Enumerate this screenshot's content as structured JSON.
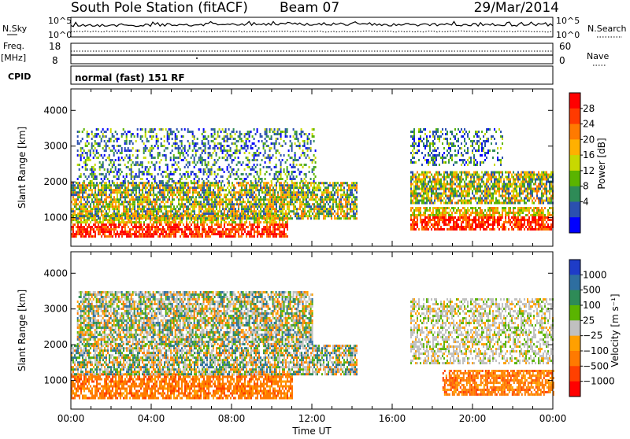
{
  "header": {
    "station": "South Pole Station (fitACF)",
    "beam": "Beam 07",
    "date": "29/Mar/2014"
  },
  "top_panels": {
    "nsky_label": "N.Sky",
    "nsearch_label": "N.Search",
    "nsky_ticks": [
      "10^5",
      "10^0"
    ],
    "freq_label_line1": "Freq.",
    "freq_label_line2": "[MHz]",
    "freq_ticks": [
      "18",
      "8"
    ],
    "nave_label": "Nave",
    "nave_ticks": [
      "60",
      "0"
    ],
    "cpid_label": "CPID",
    "cpid_text": "normal (fast) 151 RF"
  },
  "chart_data": [
    {
      "type": "heatmap",
      "panel": "power",
      "ylabel": "Slant Range [km]",
      "xlabel": "",
      "colorbar_label": "Power [dB]",
      "colorbar_ticks": [
        "28",
        "24",
        "20",
        "16",
        "12",
        "8",
        "4"
      ],
      "colorbar_colors": [
        "#ff0000",
        "#ff3a00",
        "#ff7a00",
        "#ffb000",
        "#c8d800",
        "#5ab400",
        "#2e8b57",
        "#2b50b0",
        "#0000ff"
      ],
      "y_ticks": [
        "4000",
        "3000",
        "2000",
        "1000"
      ],
      "ylim": [
        200,
        4600
      ],
      "x_ticks": [
        "00:00",
        "04:00",
        "08:00",
        "12:00",
        "16:00",
        "20:00",
        "00:00"
      ],
      "xlim": [
        0,
        24
      ],
      "echo_bands": [
        {
          "t0": 0.0,
          "t1": 10.8,
          "r0": 500,
          "r1": 1100,
          "level": "strong"
        },
        {
          "t0": 0.0,
          "t1": 14.2,
          "r0": 1000,
          "r1": 2000,
          "level": "medium"
        },
        {
          "t0": 0.3,
          "t1": 12.2,
          "r0": 2000,
          "r1": 3500,
          "level": "weak"
        },
        {
          "t0": 16.9,
          "t1": 24.0,
          "r0": 650,
          "r1": 1300,
          "level": "strong"
        },
        {
          "t0": 16.9,
          "t1": 24.0,
          "r0": 1400,
          "r1": 2300,
          "level": "medium"
        },
        {
          "t0": 16.9,
          "t1": 21.5,
          "r0": 2500,
          "r1": 3500,
          "level": "weak"
        }
      ]
    },
    {
      "type": "heatmap",
      "panel": "velocity",
      "ylabel": "Slant Range [km]",
      "xlabel": "Time UT",
      "colorbar_label": "Velocity [m s⁻¹]",
      "colorbar_ticks": [
        "1000",
        "500",
        "100",
        "25",
        "−25",
        "−100",
        "−500",
        "−1000"
      ],
      "colorbar_colors": [
        "#1e3cc8",
        "#2e6ea0",
        "#2e8b57",
        "#5ab400",
        "#c0c0c0",
        "#ffa000",
        "#ff7a00",
        "#ff4000",
        "#ff0000"
      ],
      "y_ticks": [
        "4000",
        "3000",
        "2000",
        "1000"
      ],
      "ylim": [
        200,
        4600
      ],
      "x_ticks": [
        "00:00",
        "04:00",
        "08:00",
        "12:00",
        "16:00",
        "20:00",
        "00:00"
      ],
      "xlim": [
        0,
        24
      ],
      "echo_bands": [
        {
          "t0": 0.0,
          "t1": 11.0,
          "r0": 500,
          "r1": 1200,
          "level": "negative"
        },
        {
          "t0": 0.0,
          "t1": 14.2,
          "r0": 1200,
          "r1": 2000,
          "level": "mixed"
        },
        {
          "t0": 0.3,
          "t1": 12.0,
          "r0": 2000,
          "r1": 3500,
          "level": "mixed"
        },
        {
          "t0": 16.9,
          "t1": 24.0,
          "r0": 1500,
          "r1": 3300,
          "level": "grey"
        },
        {
          "t0": 18.5,
          "t1": 24.0,
          "r0": 600,
          "r1": 1300,
          "level": "negative"
        }
      ]
    }
  ]
}
